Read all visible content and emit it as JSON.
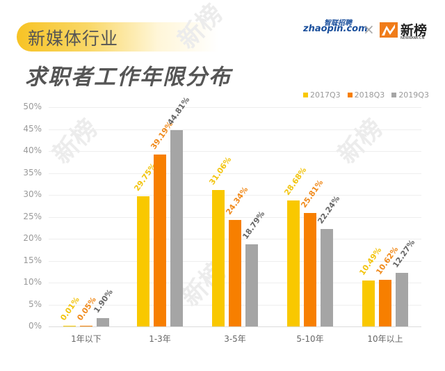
{
  "header": {
    "subtitle": "新媒体行业",
    "title": "求职者工作年限分布",
    "logos": {
      "zhaopin_text": "zhaopin.com",
      "zhaopin_cn": "智联招聘",
      "separator": "×",
      "newrank_text": "新榜",
      "newrank_sub": "NEWRANK.CN"
    }
  },
  "watermark": "新榜",
  "colors": {
    "2017Q3": "#f9c800",
    "2018Q3": "#f77f00",
    "2019Q3": "#a5a5a5"
  },
  "legend": [
    {
      "label": "2017Q3",
      "color": "#f9c800"
    },
    {
      "label": "2018Q3",
      "color": "#f77f00"
    },
    {
      "label": "2019Q3",
      "color": "#a5a5a5"
    }
  ],
  "chart_data": {
    "type": "bar",
    "title": "求职者工作年限分布",
    "subtitle": "新媒体行业",
    "xlabel": "",
    "ylabel": "",
    "categories": [
      "1年以下",
      "1-3年",
      "3-5年",
      "5-10年",
      "10年以上"
    ],
    "series": [
      {
        "name": "2017Q3",
        "color": "#f9c800",
        "values": [
          0.01,
          29.75,
          31.06,
          28.68,
          10.49
        ],
        "labels": [
          "0.01%",
          "29.75%",
          "31.06%",
          "28.68%",
          "10.49%"
        ]
      },
      {
        "name": "2018Q3",
        "color": "#f77f00",
        "values": [
          0.05,
          39.19,
          24.34,
          25.81,
          10.62
        ],
        "labels": [
          "0.05%",
          "39.19%",
          "24.34%",
          "25.81%",
          "10.62%"
        ]
      },
      {
        "name": "2019Q3",
        "color": "#a5a5a5",
        "values": [
          1.9,
          44.81,
          18.79,
          22.24,
          12.27
        ],
        "labels": [
          "1.90%",
          "44.81%",
          "18.79%",
          "22.24%",
          "12.27%"
        ]
      }
    ],
    "yticks": [
      "0%",
      "5%",
      "10%",
      "15%",
      "20%",
      "25%",
      "30%",
      "35%",
      "40%",
      "45%",
      "50%"
    ],
    "ylim": [
      0,
      50
    ],
    "grid": true,
    "legend_position": "top-right"
  }
}
